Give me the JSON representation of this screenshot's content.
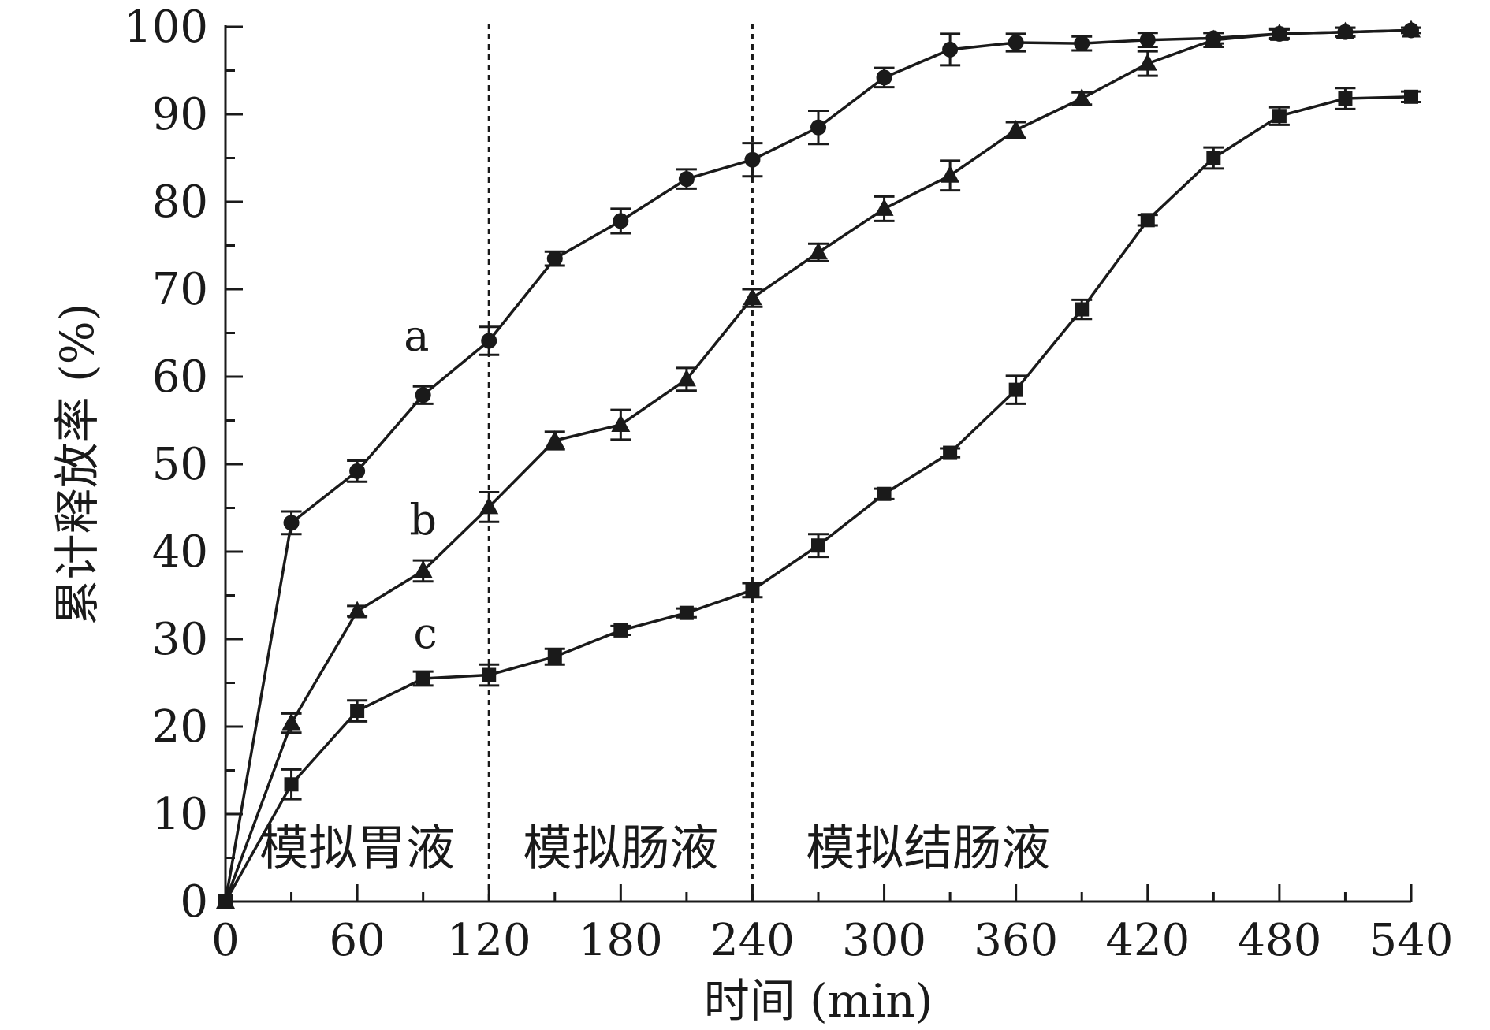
{
  "chart_data": {
    "type": "line",
    "xlabel": "时间 (min)",
    "ylabel": "累计释放率 (%)",
    "xlim": [
      0,
      540
    ],
    "ylim": [
      0,
      100
    ],
    "xticks": [
      "0",
      "60",
      "120",
      "180",
      "240",
      "300",
      "360",
      "420",
      "480",
      "540"
    ],
    "yticks": [
      "0",
      "10",
      "20",
      "30",
      "40",
      "50",
      "60",
      "70",
      "80",
      "90",
      "100"
    ],
    "x": [
      0,
      30,
      60,
      90,
      120,
      150,
      180,
      210,
      240,
      270,
      300,
      330,
      360,
      390,
      420,
      450,
      480,
      510,
      540
    ],
    "series": [
      {
        "name": "a",
        "marker": "circle",
        "values": [
          0,
          43.3,
          49.2,
          57.9,
          64.1,
          73.5,
          77.8,
          82.6,
          84.8,
          88.5,
          94.2,
          97.4,
          98.2,
          98.1,
          98.5,
          98.7,
          99.2,
          99.4,
          99.6
        ],
        "errors": [
          0,
          1.3,
          1.2,
          1.0,
          1.6,
          0.8,
          1.4,
          1.1,
          1.9,
          1.9,
          1.1,
          1.8,
          1.0,
          0.8,
          0.8,
          0.6,
          0.5,
          0.5,
          0.3
        ]
      },
      {
        "name": "b",
        "marker": "triangle",
        "values": [
          0,
          20.4,
          33.2,
          37.8,
          45.1,
          52.7,
          54.5,
          59.7,
          69.0,
          74.2,
          79.2,
          83.0,
          88.2,
          91.8,
          95.8,
          98.5,
          99.2,
          99.4,
          99.6
        ],
        "errors": [
          0,
          1.1,
          0.6,
          1.2,
          1.7,
          1.0,
          1.7,
          1.3,
          1.0,
          1.0,
          1.4,
          1.7,
          0.9,
          0.7,
          1.4,
          0.8,
          0.6,
          0.5,
          0.3
        ]
      },
      {
        "name": "c",
        "marker": "square",
        "values": [
          0,
          13.4,
          21.8,
          25.5,
          25.9,
          28.0,
          31.0,
          33.0,
          35.6,
          40.7,
          46.6,
          51.3,
          58.5,
          67.7,
          77.9,
          85.0,
          89.8,
          91.8,
          92.0
        ],
        "errors": [
          0,
          1.7,
          1.2,
          0.8,
          1.2,
          0.9,
          0.5,
          0.5,
          0.8,
          1.3,
          0.6,
          0.5,
          1.6,
          1.1,
          0.6,
          1.2,
          1.0,
          1.2,
          0.6
        ]
      }
    ],
    "dividers": [
      120,
      240
    ],
    "regions": [
      {
        "label": "模拟胃液",
        "x_center": 60
      },
      {
        "label": "模拟肠液",
        "x_center": 180
      },
      {
        "label": "模拟结肠液",
        "x_center": 320
      }
    ],
    "series_labels": [
      {
        "text": "a",
        "x": 87,
        "y": 63
      },
      {
        "text": "b",
        "x": 90,
        "y": 42
      },
      {
        "text": "c",
        "x": 91,
        "y": 29
      }
    ],
    "grid": false,
    "legend": "none",
    "line_color": "#1a1a1a"
  }
}
